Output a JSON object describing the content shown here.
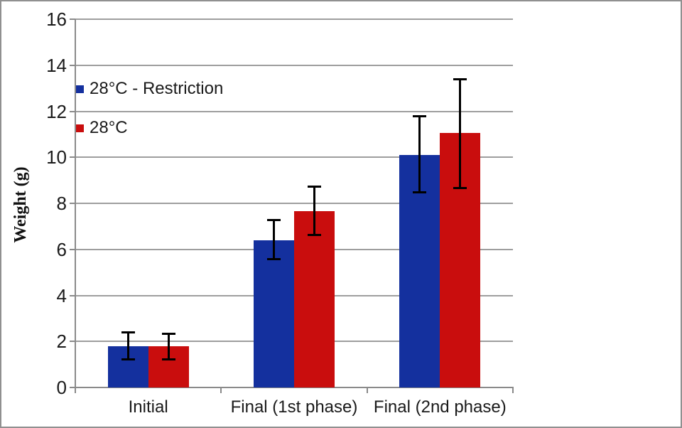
{
  "chart_data": {
    "type": "bar",
    "title": "",
    "xlabel": "",
    "ylabel": "Weight (g)",
    "ylim": [
      0,
      16
    ],
    "yticks": [
      0,
      2,
      4,
      6,
      8,
      10,
      12,
      14,
      16
    ],
    "grid": true,
    "legend_position": "top-left-inside",
    "categories": [
      "Initial",
      "Final (1st phase)",
      "Final (2nd phase)"
    ],
    "series": [
      {
        "name": "28°C - Restriction",
        "color": "#14309E",
        "values": [
          1.8,
          6.4,
          10.1
        ],
        "error_top": [
          2.4,
          7.3,
          11.8
        ],
        "error_bottom": [
          1.2,
          5.55,
          8.45
        ]
      },
      {
        "name": "28°C",
        "color": "#C90D0D",
        "values": [
          1.8,
          7.65,
          11.05
        ],
        "error_top": [
          2.35,
          8.75,
          13.4
        ],
        "error_bottom": [
          1.2,
          6.6,
          8.65
        ]
      }
    ],
    "colors": {
      "gridline": "#9e9e9e",
      "axis": "#8a8a8a",
      "error_bar": "#000000",
      "text": "#1a1a1a",
      "frame_border": "#909090",
      "background": "#ffffff"
    }
  }
}
